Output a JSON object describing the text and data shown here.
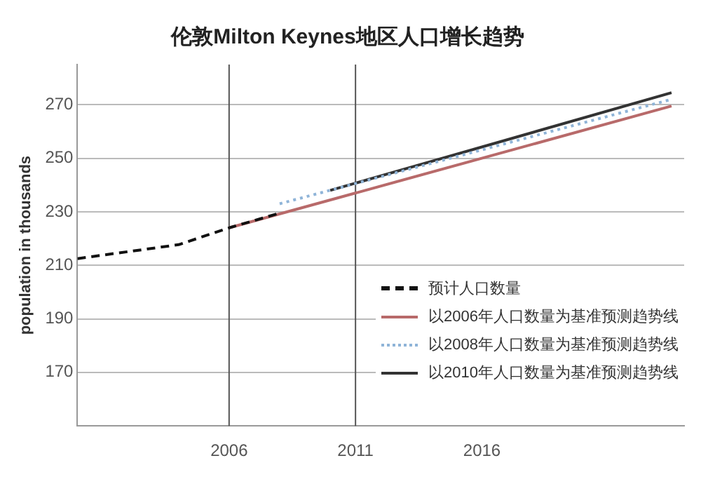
{
  "chart_data": {
    "type": "line",
    "title": "伦敦Milton Keynes地区人口增长趋势",
    "ylabel": "population in thousands",
    "xlim": [
      2000,
      2024
    ],
    "xticks": [
      2006,
      2011,
      2016
    ],
    "ylim": [
      150,
      285
    ],
    "yticks": [
      170,
      190,
      210,
      230,
      250,
      270
    ],
    "grid": "y",
    "legend": "bottom right",
    "marker": "none",
    "ref_lines": [
      {
        "axis": "x",
        "value": 2006,
        "color": "#555555"
      },
      {
        "axis": "x",
        "value": 2011,
        "color": "#555555"
      }
    ],
    "series": [
      {
        "name": "预计人口数量",
        "color": "#111111",
        "line_style": "dashed",
        "x": [
          2000,
          2004,
          2006,
          2008
        ],
        "values": [
          212.5,
          217.7,
          224,
          229.5
        ]
      },
      {
        "name": "以2006年人口数量为基准预测趋势线",
        "color": "#b86a6a",
        "line_style": "solid",
        "x": [
          2006,
          2023.5
        ],
        "values": [
          224,
          269.5
        ]
      },
      {
        "name": "以2008年人口数量为基准预测趋势线",
        "color": "#8fb4d8",
        "line_style": "dotted",
        "x": [
          2008,
          2023.5
        ],
        "values": [
          233,
          272
        ]
      },
      {
        "name": "以2010年人口数量为基准预测趋势线",
        "color": "#333333",
        "line_style": "solid",
        "x": [
          2010,
          2023.5
        ],
        "values": [
          238,
          274.5
        ]
      }
    ]
  }
}
